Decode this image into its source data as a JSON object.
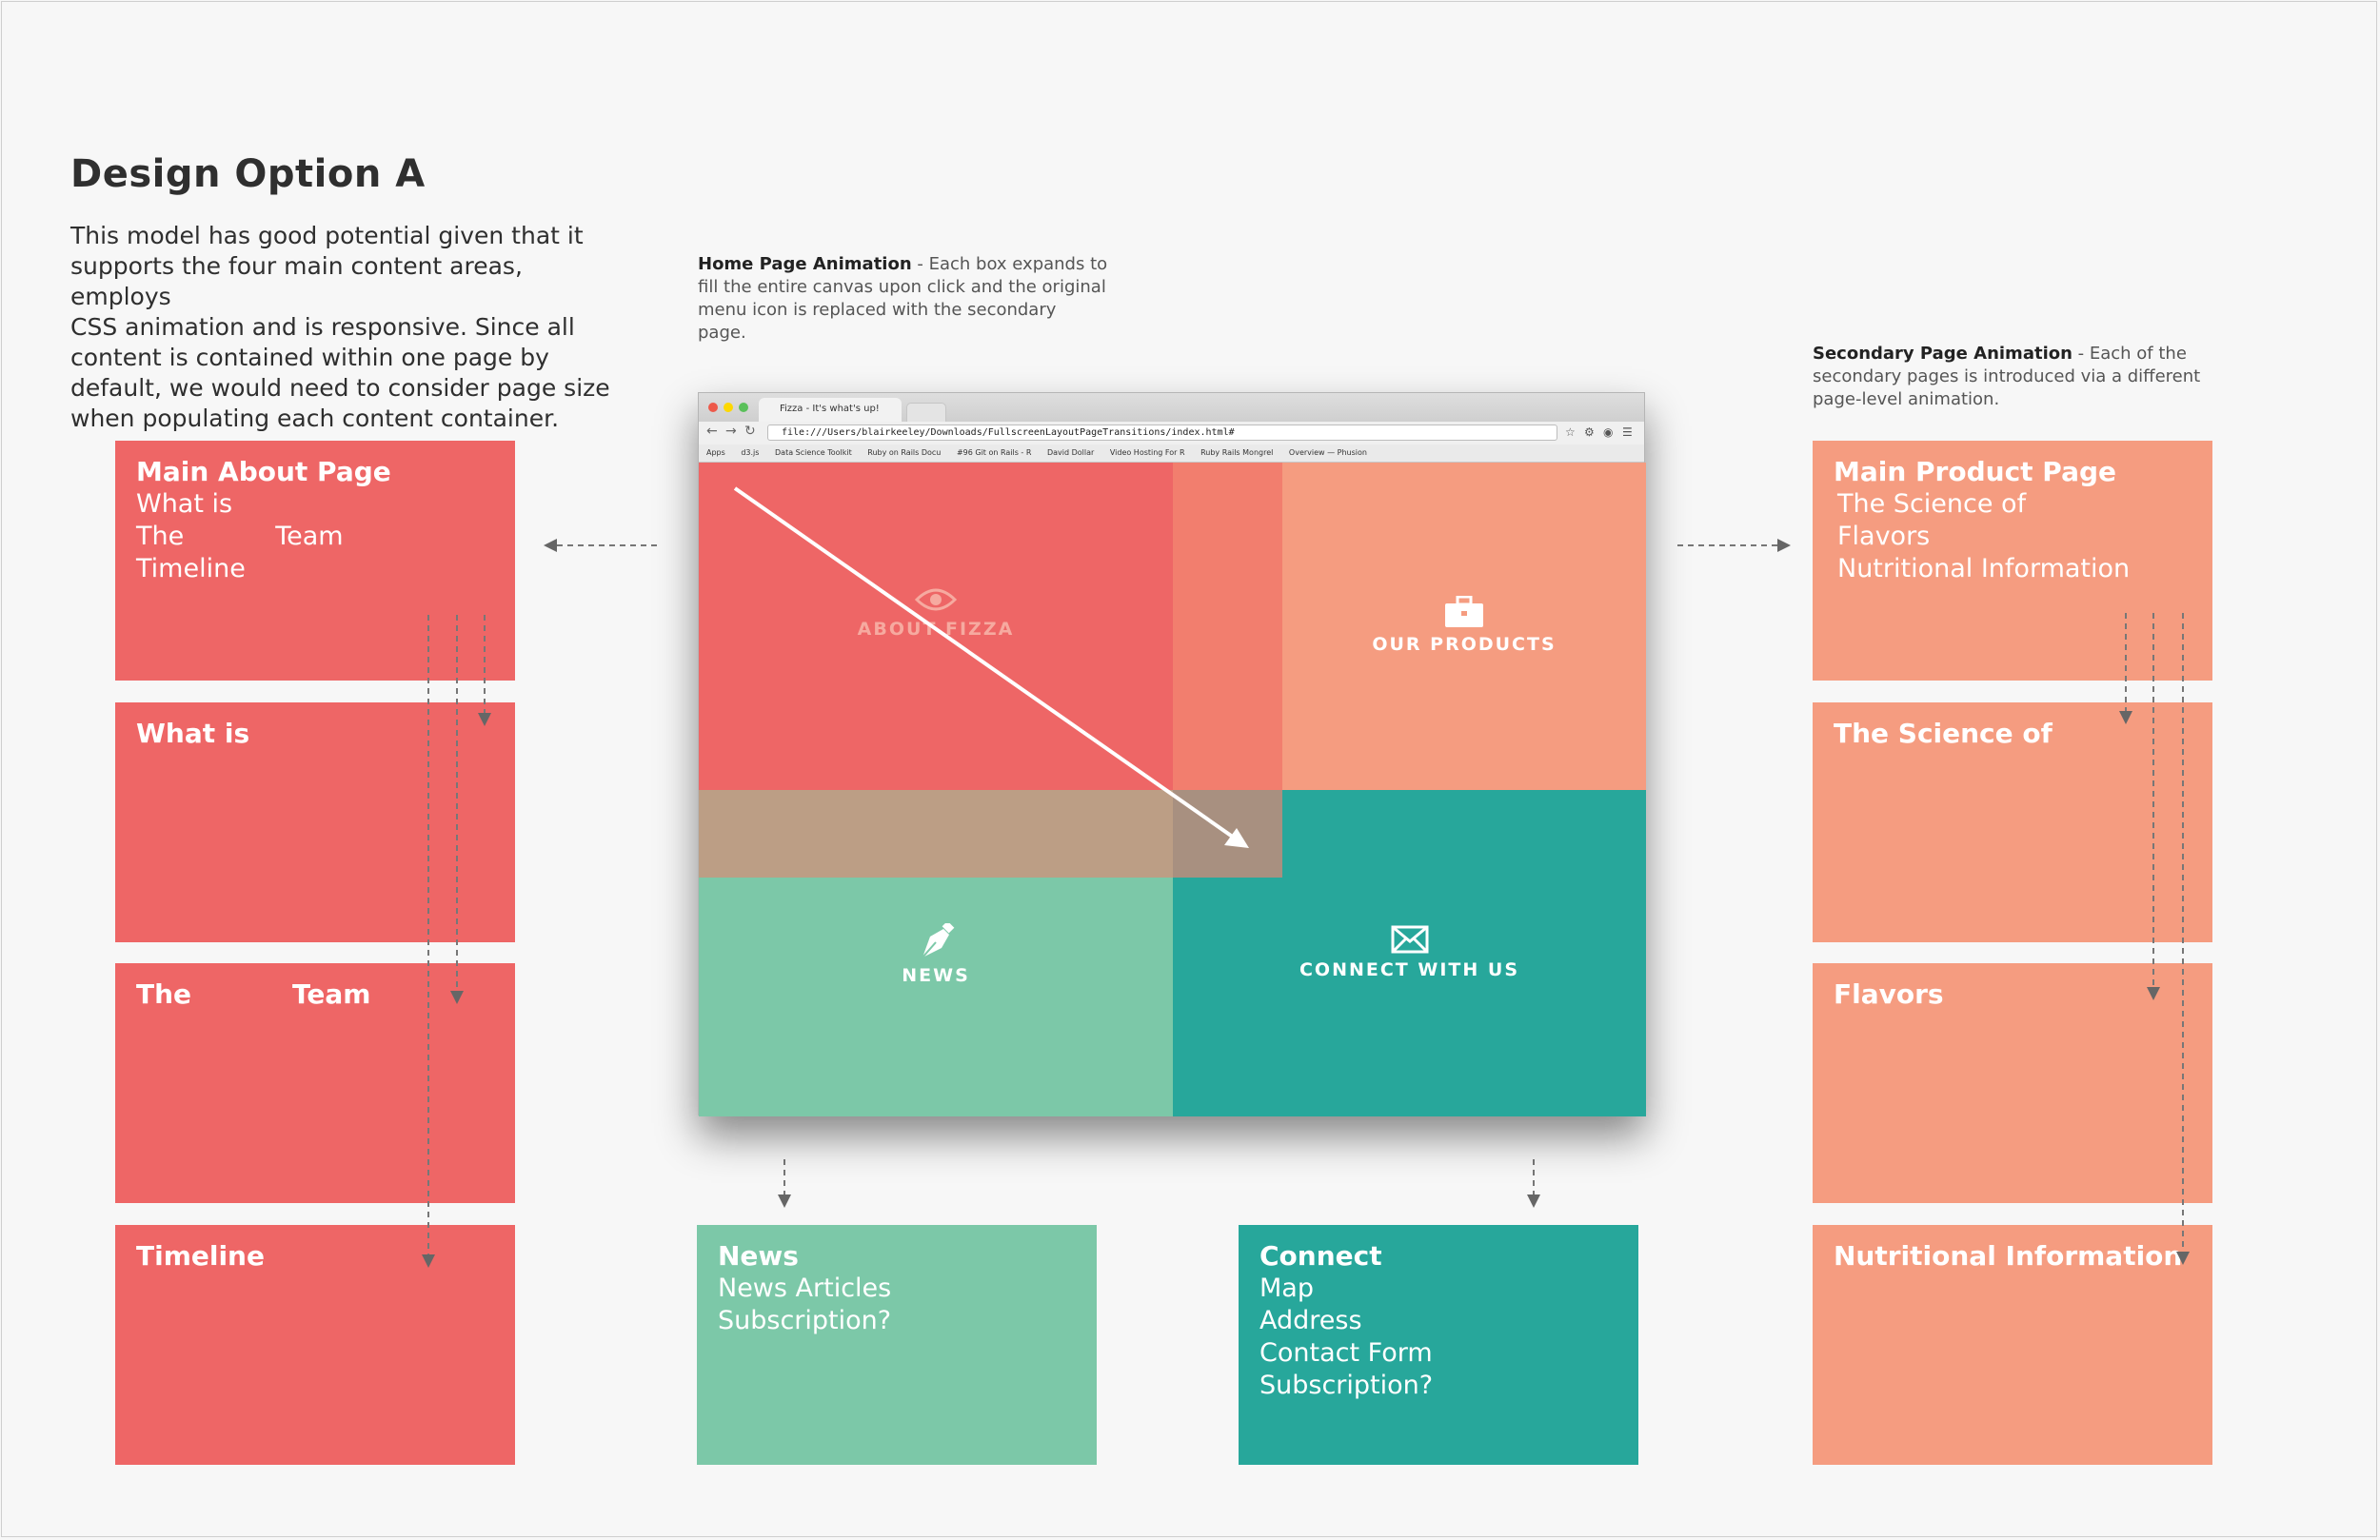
{
  "page": {
    "title": "Design Option A",
    "intro_lines": [
      "This model has good potential given that it",
      "supports the four main content areas, employs",
      "CSS animation and is responsive.  Since all",
      "content is contained within one page by",
      "default, we would need to consider page size",
      "when populating each content container."
    ]
  },
  "notes": {
    "home": {
      "label": "Home Page Animation",
      "lines": [
        " - Each box expands to",
        "fill the entire canvas upon click and the original",
        "menu icon is replaced with the secondary",
        "page."
      ]
    },
    "secondary": {
      "label": "Secondary Page Animation",
      "lines": [
        " - Each of the",
        "secondary pages is introduced via a different",
        "page-level animation."
      ]
    }
  },
  "about": {
    "main": {
      "head": "Main About Page",
      "lines": [
        "What is",
        "The",
        "Team",
        "Timeline"
      ]
    },
    "cards": [
      "What is",
      "The",
      "Team",
      "Timeline"
    ]
  },
  "products": {
    "main": {
      "head": "Main Product Page",
      "lines": [
        "The Science of",
        "Flavors",
        "Nutritional Information"
      ]
    },
    "cards": [
      "The Science of",
      "Flavors",
      "Nutritional Information"
    ]
  },
  "news": {
    "head": "News",
    "lines": [
      "News Articles",
      "Subscription?"
    ]
  },
  "connect": {
    "head": "Connect",
    "lines": [
      "Map",
      "Address",
      "Contact Form",
      "Subscription?"
    ]
  },
  "browser": {
    "tab_title": "Fizza - It's what's up!",
    "url": "file:///Users/blairkeeley/Downloads/FullscreenLayoutPageTransitions/index.html#",
    "bookmarks": [
      "Apps",
      "d3.js",
      "Data Science Toolkit",
      "Ruby on Rails Docu",
      "#96 Git on Rails - R",
      "David Dollar",
      "Video Hosting For R",
      "Ruby Rails Mongrel",
      "Overview — Phusion"
    ],
    "tiles": {
      "about": "ABOUT FIZZA",
      "products": "OUR PRODUCTS",
      "news": "NEWS",
      "connect": "CONNECT WITH US"
    }
  },
  "colors": {
    "red": "#ee6666",
    "peach": "#f59c80",
    "mint": "#7cc8a8",
    "teal": "#27a79b",
    "tan": "#bc9e85"
  },
  "icons": {
    "about": "eye-icon",
    "products": "briefcase-icon",
    "news": "pen-nib-icon",
    "connect": "envelope-icon"
  }
}
